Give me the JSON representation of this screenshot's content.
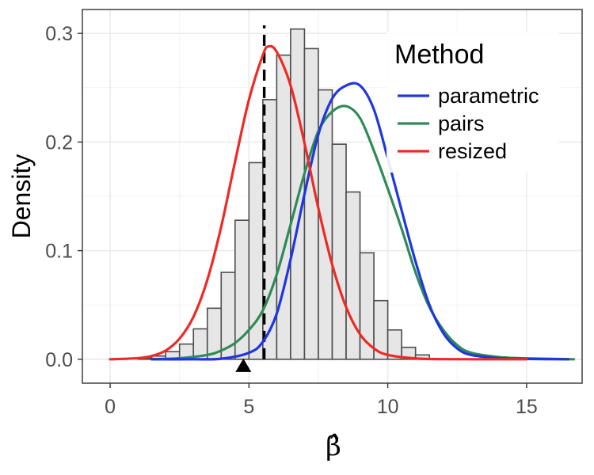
{
  "chart_data": {
    "type": "histogram-density",
    "xlabel": "β̂",
    "ylabel": "Density",
    "xlim": [
      -1,
      17
    ],
    "ylim": [
      -0.022,
      0.322
    ],
    "x_ticks": [
      0,
      5,
      10,
      15
    ],
    "y_ticks": [
      0.0,
      0.1,
      0.2,
      0.3
    ],
    "y_tick_labels": [
      "0.0",
      "0.1",
      "0.2",
      "0.3"
    ],
    "grid": true,
    "histogram": {
      "bin_width": 0.5,
      "fill": "#e6e6e6",
      "stroke": "#4d4d4d",
      "bins": [
        {
          "x0": 1.0,
          "height": 0.001
        },
        {
          "x0": 1.5,
          "height": 0.003
        },
        {
          "x0": 2.0,
          "height": 0.007
        },
        {
          "x0": 2.5,
          "height": 0.014
        },
        {
          "x0": 3.0,
          "height": 0.028
        },
        {
          "x0": 3.5,
          "height": 0.047
        },
        {
          "x0": 4.0,
          "height": 0.08
        },
        {
          "x0": 4.5,
          "height": 0.128
        },
        {
          "x0": 5.0,
          "height": 0.181
        },
        {
          "x0": 5.5,
          "height": 0.239
        },
        {
          "x0": 6.0,
          "height": 0.28
        },
        {
          "x0": 6.5,
          "height": 0.304
        },
        {
          "x0": 7.0,
          "height": 0.286
        },
        {
          "x0": 7.5,
          "height": 0.248
        },
        {
          "x0": 8.0,
          "height": 0.198
        },
        {
          "x0": 8.5,
          "height": 0.154
        },
        {
          "x0": 9.0,
          "height": 0.098
        },
        {
          "x0": 9.5,
          "height": 0.054
        },
        {
          "x0": 10.0,
          "height": 0.027
        },
        {
          "x0": 10.5,
          "height": 0.011
        },
        {
          "x0": 11.0,
          "height": 0.004
        }
      ]
    },
    "reference_line": {
      "x": 5.55,
      "style": "dashed",
      "color": "#000000"
    },
    "marker": {
      "x": 4.8,
      "shape": "triangle",
      "color": "#000000"
    },
    "legend": {
      "title": "Method",
      "position": "top-right",
      "entries": [
        "parametric",
        "pairs",
        "resized"
      ]
    },
    "series": [
      {
        "name": "parametric",
        "color": "#1f36e0",
        "x": [
          1.5,
          3.0,
          4.0,
          5.0,
          5.5,
          6.0,
          6.5,
          7.0,
          7.5,
          8.0,
          8.5,
          9.0,
          9.5,
          10.0,
          10.5,
          11.0,
          11.5,
          12.0,
          12.5,
          13.0,
          14.0,
          15.0,
          16.5
        ],
        "y": [
          0.0,
          0.0,
          0.0005,
          0.006,
          0.016,
          0.042,
          0.092,
          0.152,
          0.207,
          0.24,
          0.252,
          0.252,
          0.23,
          0.185,
          0.137,
          0.09,
          0.05,
          0.024,
          0.01,
          0.004,
          0.001,
          0.0003,
          0.0
        ]
      },
      {
        "name": "pairs",
        "color": "#2e8b57",
        "x": [
          1.5,
          2.5,
          3.5,
          4.0,
          4.5,
          5.0,
          5.5,
          6.0,
          6.5,
          7.0,
          7.5,
          8.0,
          8.5,
          9.0,
          9.5,
          10.0,
          10.5,
          11.0,
          11.5,
          12.0,
          12.5,
          13.0,
          14.0,
          15.0,
          16.7
        ],
        "y": [
          0.0,
          0.001,
          0.004,
          0.008,
          0.015,
          0.027,
          0.045,
          0.078,
          0.124,
          0.171,
          0.21,
          0.228,
          0.233,
          0.222,
          0.192,
          0.157,
          0.12,
          0.08,
          0.048,
          0.027,
          0.013,
          0.006,
          0.002,
          0.0008,
          0.0
        ]
      },
      {
        "name": "resized",
        "color": "#ee2a24",
        "x": [
          0.0,
          1.0,
          1.5,
          2.0,
          2.5,
          3.0,
          3.5,
          4.0,
          4.5,
          5.0,
          5.5,
          5.7,
          6.0,
          6.5,
          7.0,
          7.5,
          8.0,
          8.5,
          9.0,
          9.5,
          10.0,
          11.0,
          12.0,
          15.0
        ],
        "y": [
          0.0,
          0.001,
          0.003,
          0.008,
          0.019,
          0.039,
          0.073,
          0.122,
          0.182,
          0.239,
          0.28,
          0.288,
          0.283,
          0.252,
          0.199,
          0.139,
          0.087,
          0.048,
          0.023,
          0.01,
          0.004,
          0.0008,
          0.0001,
          0.0
        ]
      }
    ]
  }
}
